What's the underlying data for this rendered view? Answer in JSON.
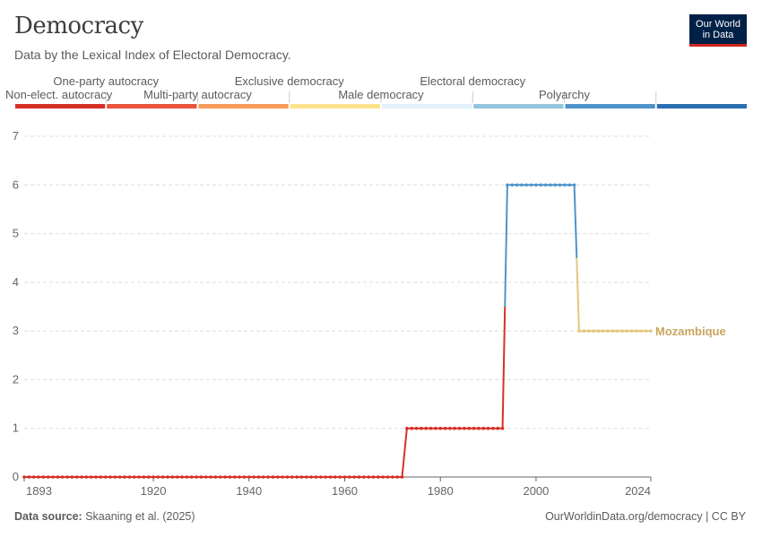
{
  "title": "Democracy",
  "subtitle": "Data by the Lexical Index of Electoral Democracy.",
  "logo": {
    "line1": "Our World",
    "line2": "in Data"
  },
  "footer": {
    "source_label": "Data source:",
    "source_text": "Skaaning et al. (2025)",
    "right_text": "OurWorldinData.org/democracy | CC BY"
  },
  "legend": [
    {
      "label": "Non-elect. autocracy",
      "color": "#d73027",
      "row": "bottom"
    },
    {
      "label": "One-party autocracy",
      "color": "#e8533c",
      "row": "top"
    },
    {
      "label": "Multi-party autocracy",
      "color": "#f79b5a",
      "row": "bottom"
    },
    {
      "label": "Exclusive democracy",
      "color": "#fde28c",
      "row": "top"
    },
    {
      "label": "Male democracy",
      "color": "#e3f2fa",
      "row": "bottom"
    },
    {
      "label": "Electoral democracy",
      "color": "#92c5de",
      "row": "top"
    },
    {
      "label": "Polyarchy",
      "color": "#4f93c8",
      "row": "bottom"
    },
    {
      "label": "",
      "color": "#2a6fb0",
      "row": "none"
    }
  ],
  "colors": {
    "red": "#d73027",
    "blue": "#4f93c8",
    "yellow": "#e3c77e",
    "label": "#c9a55e",
    "grid": "#dddddd",
    "axis": "#666666"
  },
  "chart_data": {
    "type": "line",
    "title": "Democracy",
    "xlabel": "",
    "ylabel": "",
    "xlim": [
      1893,
      2024
    ],
    "ylim": [
      0,
      7
    ],
    "x_ticks": [
      1893,
      1920,
      1940,
      1960,
      1980,
      2000,
      2024
    ],
    "y_ticks": [
      0,
      1,
      2,
      3,
      4,
      5,
      6,
      7
    ],
    "series": [
      {
        "name": "Mozambique",
        "segments": [
          {
            "start": 1893,
            "end": 1972,
            "value": 0
          },
          {
            "start": 1973,
            "end": 1993,
            "value": 1
          },
          {
            "start": 1994,
            "end": 2008,
            "value": 6
          },
          {
            "start": 2009,
            "end": 2024,
            "value": 3
          }
        ]
      }
    ]
  }
}
